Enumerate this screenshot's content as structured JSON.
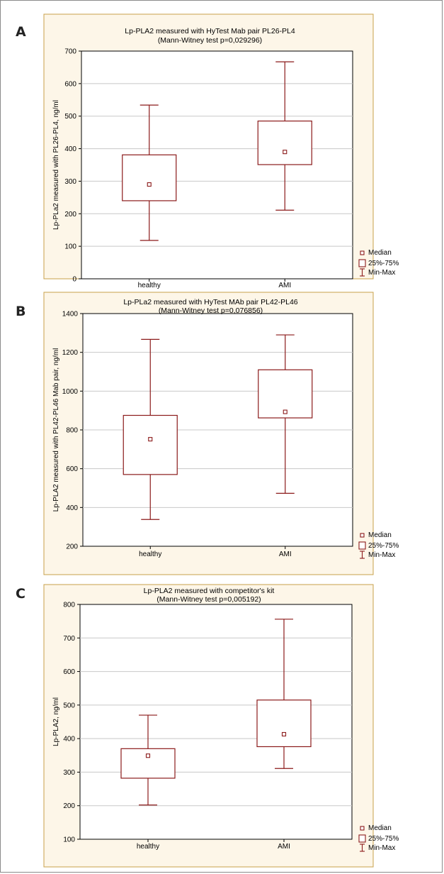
{
  "style": {
    "box_color": "#8b1a1a",
    "panel_bg": "#fdf6e8",
    "border": "#c8a04a",
    "grid": "#c8c8c8"
  },
  "legend": {
    "median": "Median",
    "box": "25%-75%",
    "range": "Min-Max"
  },
  "chart_data": [
    {
      "panel_letter": "A",
      "type": "boxplot",
      "title": "Lp-PLA2 measured with HyTest Mab pair PL26-PL4",
      "subtitle": "(Mann-Witney test p=0,029296)",
      "ylabel": "Lp-PLa2 measured with PL26-PL4, ng/ml",
      "xlabel": "",
      "categories": [
        "healthy",
        "AMI"
      ],
      "ylim": [
        0,
        700
      ],
      "yticks": [
        0,
        100,
        200,
        300,
        400,
        500,
        600,
        700
      ],
      "grid": true,
      "legend_position": "bottom-right outside",
      "series": [
        {
          "category": "healthy",
          "min": 118,
          "q1": 240,
          "median": 290,
          "q3": 381,
          "max": 534
        },
        {
          "category": "AMI",
          "min": 211,
          "q1": 351,
          "median": 390,
          "q3": 485,
          "max": 667
        }
      ]
    },
    {
      "panel_letter": "B",
      "type": "boxplot",
      "title": "Lp-PLa2 measured with HyTest MAb pair PL42-PL46",
      "subtitle": "(Mann-Witney test p=0,076856)",
      "ylabel": "Lp-PLA2 measured with PL42-PL46 Mab pair, ng/ml",
      "xlabel": "",
      "categories": [
        "healthy",
        "AMI"
      ],
      "ylim": [
        200,
        1400
      ],
      "yticks": [
        200,
        400,
        600,
        800,
        1000,
        1200,
        1400
      ],
      "grid": true,
      "legend_position": "bottom-right outside",
      "series": [
        {
          "category": "healthy",
          "min": 338,
          "q1": 570,
          "median": 752,
          "q3": 875,
          "max": 1267
        },
        {
          "category": "AMI",
          "min": 473,
          "q1": 862,
          "median": 893,
          "q3": 1110,
          "max": 1290
        }
      ]
    },
    {
      "panel_letter": "C",
      "type": "boxplot",
      "title": "Lp-PLA2 measured with competitor's kit",
      "subtitle": "(Mann-Witney test p=0,005192)",
      "ylabel": "Lp-PLA2, ng/ml",
      "xlabel": "",
      "categories": [
        "healthy",
        "AMI"
      ],
      "ylim": [
        100,
        800
      ],
      "yticks": [
        100,
        200,
        300,
        400,
        500,
        600,
        700,
        800
      ],
      "grid": true,
      "legend_position": "bottom-right outside",
      "series": [
        {
          "category": "healthy",
          "min": 202,
          "q1": 282,
          "median": 349,
          "q3": 370,
          "max": 470
        },
        {
          "category": "AMI",
          "min": 311,
          "q1": 376,
          "median": 413,
          "q3": 515,
          "max": 756
        }
      ]
    }
  ]
}
